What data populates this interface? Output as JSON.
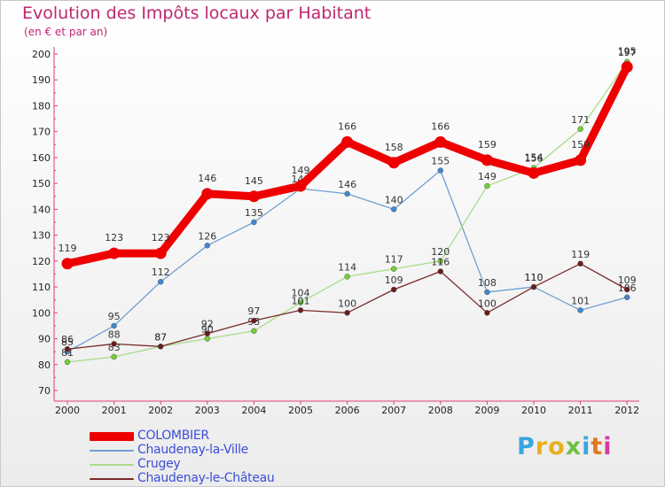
{
  "chart_data": {
    "type": "line",
    "title": "Evolution des Impôts locaux par Habitant",
    "subtitle": "(en € et par an)",
    "xlabel": "",
    "ylabel": "",
    "categories": [
      "2000",
      "2001",
      "2002",
      "2003",
      "2004",
      "2005",
      "2006",
      "2007",
      "2008",
      "2009",
      "2010",
      "2011",
      "2012"
    ],
    "ylim": [
      70,
      200
    ],
    "yticks": [
      70,
      80,
      90,
      100,
      110,
      120,
      130,
      140,
      150,
      160,
      170,
      180,
      190,
      200
    ],
    "grid": false,
    "legend_position": "bottom-left",
    "series": [
      {
        "name": "Chaudenay-la-Ville",
        "color": "#6fa0d2",
        "marker": "#3f88d0",
        "values": [
          85,
          95,
          112,
          126,
          135,
          148,
          146,
          140,
          155,
          108,
          110,
          101,
          106
        ]
      },
      {
        "name": "Crugey",
        "color": "#a8dc88",
        "marker": "#6fd03b",
        "values": [
          81,
          83,
          87,
          90,
          93,
          104,
          114,
          117,
          120,
          149,
          156,
          171,
          197
        ]
      },
      {
        "name": "Chaudenay-le-Château",
        "color": "#7a2b2b",
        "marker": "#6a1c1c",
        "values": [
          86,
          88,
          87,
          92,
          97,
          101,
          100,
          109,
          116,
          100,
          110,
          119,
          109
        ]
      },
      {
        "name": "COLOMBIER",
        "color": "#ee0000",
        "marker": "#ee0000",
        "values": [
          119,
          123,
          123,
          146,
          145,
          149,
          166,
          158,
          166,
          159,
          154,
          159,
          195
        ]
      }
    ]
  },
  "legend": {
    "items": [
      {
        "label": "COLOMBIER",
        "color": "#ee0000"
      },
      {
        "label": "Chaudenay-la-Ville",
        "color": "#6fa0d2"
      },
      {
        "label": "Crugey",
        "color": "#a8dc88"
      },
      {
        "label": "Chaudenay-le-Château",
        "color": "#7a2b2b"
      }
    ]
  },
  "logo": {
    "text": "Proxiti",
    "letter_colors": [
      "#3aa6e0",
      "#e8b020",
      "#e8b020",
      "#6fc040",
      "#3aa6e0",
      "#e07820",
      "#d83aa0"
    ]
  }
}
